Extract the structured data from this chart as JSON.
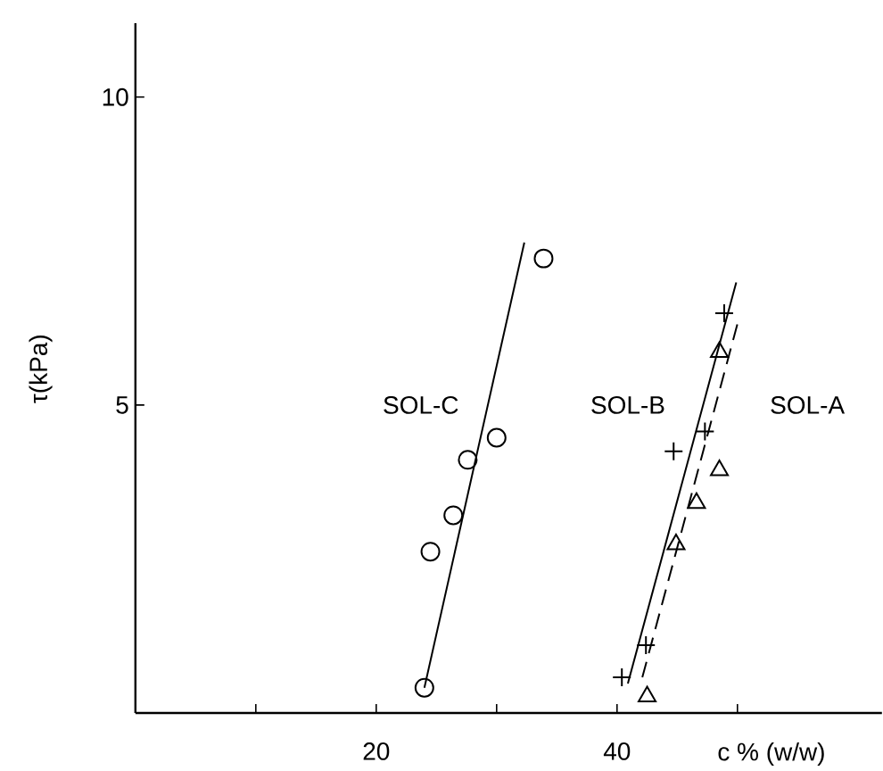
{
  "chart_data": {
    "type": "scatter",
    "xlabel": "c % (w/w)",
    "ylabel": "τ(kPa)",
    "xlim": [
      0,
      62
    ],
    "ylim": [
      0,
      11.2
    ],
    "xticks": [
      {
        "value": 10,
        "label": null
      },
      20,
      {
        "value": 30,
        "label": null
      },
      40,
      {
        "value": 50,
        "label": null
      }
    ],
    "yticks": [
      5,
      10
    ],
    "grid": false,
    "series": [
      {
        "name": "SOL-C",
        "marker": "circle",
        "color": "#000000",
        "x": [
          24.0,
          24.5,
          26.4,
          27.6,
          30.0,
          33.9
        ],
        "values": [
          0.41,
          2.62,
          3.21,
          4.11,
          4.47,
          7.38
        ]
      },
      {
        "name": "SOL-B",
        "marker": "cross",
        "color": "#000000",
        "x": [
          40.4,
          42.4,
          44.7,
          47.3,
          48.9
        ],
        "values": [
          0.58,
          1.1,
          4.25,
          4.57,
          6.49
        ]
      },
      {
        "name": "SOL-A",
        "marker": "triangle",
        "color": "#000000",
        "x": [
          42.5,
          44.9,
          46.6,
          48.5,
          48.5
        ],
        "values": [
          0.27,
          2.74,
          3.41,
          5.86,
          3.94
        ]
      },
      {
        "type": "line",
        "line_style": "solid",
        "marker": "none",
        "color": "#000000",
        "x": [
          24.0,
          32.3
        ],
        "values": [
          0.41,
          7.64
        ]
      },
      {
        "type": "line",
        "line_style": "solid",
        "marker": "none",
        "color": "#000000",
        "x": [
          40.9,
          49.9
        ],
        "values": [
          0.48,
          6.99
        ]
      },
      {
        "type": "line",
        "line_style": "dashed",
        "marker": "none",
        "color": "#000000",
        "x": [
          42.1,
          50.1
        ],
        "values": [
          0.58,
          6.39
        ]
      }
    ]
  }
}
